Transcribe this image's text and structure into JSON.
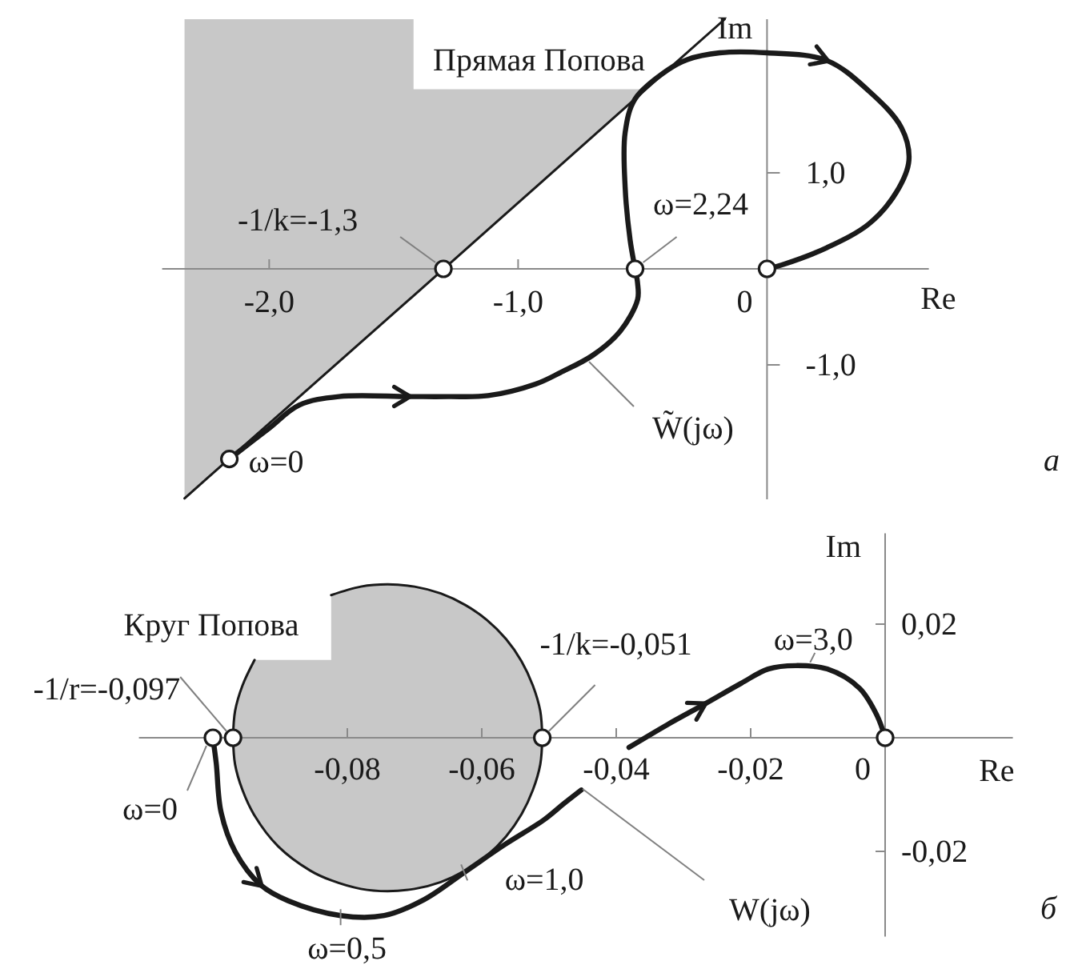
{
  "chart_data": [
    {
      "type": "line",
      "xlabel": "Re",
      "ylabel": "Im",
      "xlim": [
        -2.43,
        0.65
      ],
      "ylim": [
        -2.4,
        2.6
      ],
      "xticks": [
        {
          "value": -2,
          "label": "-2,0"
        },
        {
          "value": -1,
          "label": "-1,0"
        },
        0
      ],
      "yticks": [
        {
          "value": -1,
          "label": "-1,0"
        },
        {
          "value": 1,
          "label": "1,0"
        }
      ],
      "series": [
        {
          "name": "W̃(jω)",
          "color": "#1a1a1a",
          "x": [
            -2.16,
            -2.0,
            -1.88,
            -1.72,
            -1.44,
            -1.28,
            -1.12,
            -0.93,
            -0.83,
            -0.7,
            -0.59,
            -0.52,
            -0.52,
            -0.53,
            -0.55,
            -0.57,
            -0.57,
            -0.53,
            -0.4,
            -0.32,
            -0.19,
            0,
            0.24,
            0.41,
            0.54,
            0.57,
            0.52,
            0.41,
            0.24,
            0.07,
            0
          ],
          "values": [
            -1.98,
            -1.66,
            -1.42,
            -1.33,
            -1.33,
            -1.33,
            -1.32,
            -1.2,
            -1.08,
            -0.9,
            -0.65,
            -0.32,
            -0.15,
            0,
            0.3,
            0.85,
            1.42,
            1.77,
            2.07,
            2.18,
            2.25,
            2.25,
            2.17,
            1.85,
            1.47,
            1.13,
            0.8,
            0.47,
            0.22,
            0.05,
            0
          ]
        },
        {
          "name": "Прямая Попова",
          "color": "#1a1a1a",
          "x": [
            -2.34,
            -1.42,
            -1.42,
            -0.487,
            -0.17
          ],
          "values": [
            -2.39,
            -0.28,
            -0.28,
            1.87,
            2.6
          ],
          "lower": [
            -2.39,
            -0.28,
            -0.28,
            1.87,
            null
          ],
          "upper": [
            2.6,
            2.6,
            1.87,
            1.87,
            null
          ]
        },
        {
          "type": "scatter",
          "color": "#1a1a1a",
          "marker": "circle",
          "x": [
            -2.16,
            -1.3,
            -0.53,
            0
          ],
          "values": [
            -1.98,
            0,
            0,
            0
          ]
        }
      ],
      "annotations": [
        {
          "text": "ω=0",
          "x": -2.16,
          "y": -1.98
        },
        {
          "text": "-1/k=-1,3",
          "x": -1.3,
          "y": 0
        },
        {
          "text": "ω=2,24",
          "x": -0.53,
          "y": 0
        },
        "а"
      ]
    },
    {
      "type": "line",
      "xlabel": "Re",
      "ylabel": "Im",
      "xlim": [
        -0.111,
        0.019
      ],
      "ylim": [
        -0.035,
        0.036
      ],
      "xticks": [
        {
          "value": -0.08,
          "label": "-0,08"
        },
        {
          "value": -0.06,
          "label": "-0,06"
        },
        {
          "value": -0.04,
          "label": "-0,04"
        },
        {
          "value": -0.02,
          "label": "-0,02"
        },
        0
      ],
      "yticks": [
        {
          "value": -0.02,
          "label": "-0,02"
        },
        {
          "value": 0.02,
          "label": "0,02"
        }
      ],
      "series": [
        {
          "name": "W(jω)",
          "color": "#1a1a1a",
          "x": [
            -0.1,
            -0.0995,
            -0.0988,
            -0.0967,
            -0.0929,
            -0.0888,
            -0.081,
            -0.0745,
            -0.0686,
            -0.0626,
            -0.0567,
            -0.0507,
            -0.0479,
            -0.0452,
            -0.0417,
            -0.0381,
            -0.0324,
            -0.0269,
            -0.0214,
            -0.0174,
            -0.0133,
            -0.0086,
            -0.0038,
            -0.0012,
            0
          ],
          "values": [
            0,
            -0.0045,
            -0.013,
            -0.02,
            -0.0259,
            -0.0287,
            -0.0313,
            -0.0313,
            -0.0285,
            -0.0237,
            -0.0189,
            -0.0144,
            -0.0117,
            -0.0092,
            null,
            -0.0017,
            0.0023,
            0.0059,
            0.0096,
            0.0121,
            0.0127,
            0.0121,
            0.0087,
            0.0039,
            0
          ]
        },
        {
          "name": "Круг Попова",
          "color": "#1a1a1a",
          "x": [
            -0.097,
            -0.0967,
            -0.0956,
            -0.0938,
            -0.0903,
            -0.0855,
            -0.0824,
            -0.0824,
            -0.078,
            -0.074,
            -0.07,
            -0.0661,
            -0.0625,
            -0.0592,
            -0.0564,
            -0.0541,
            -0.0524,
            -0.0513,
            -0.051
          ],
          "values": [
            0,
            0.0047,
            0.0092,
            0.0137,
            null,
            null,
            null,
            0.0251,
            0.0266,
            0.027,
            0.0266,
            0.0254,
            0.0234,
            0.0207,
            0.0174,
            0.0135,
            0.0092,
            0.0047,
            0
          ],
          "lower": [
            0,
            -0.0047,
            -0.0092,
            -0.0137,
            -0.0191,
            -0.0234,
            -0.0251,
            -0.0251,
            -0.0266,
            -0.027,
            -0.0266,
            -0.0254,
            -0.0234,
            -0.0207,
            -0.0174,
            -0.0135,
            -0.0092,
            -0.0047,
            0
          ],
          "upper": [
            0,
            0.0047,
            0.0092,
            0.0137,
            0.0137,
            0.0137,
            0.0137,
            0.0251,
            0.0266,
            0.027,
            0.0266,
            0.0254,
            0.0234,
            0.0207,
            0.0174,
            0.0135,
            0.0092,
            0.0047,
            0
          ]
        },
        {
          "color": "#1a1a1a",
          "x": [
            -0.097,
            -0.0967,
            -0.0956,
            -0.0938,
            -0.0903,
            -0.0855,
            -0.0824,
            -0.078,
            -0.074,
            -0.07,
            -0.0661,
            -0.0625,
            -0.0592,
            -0.0564,
            -0.0541,
            -0.0524,
            -0.0513,
            -0.051
          ],
          "values": [
            0,
            -0.0047,
            -0.0092,
            -0.0137,
            -0.0191,
            -0.0234,
            -0.0251,
            -0.0266,
            -0.027,
            -0.0266,
            -0.0254,
            -0.0234,
            -0.0207,
            -0.0174,
            -0.0135,
            -0.0092,
            -0.0047,
            0
          ]
        },
        {
          "type": "scatter",
          "color": "#1a1a1a",
          "marker": "circle",
          "x": [
            -0.1,
            -0.097,
            -0.051,
            0
          ],
          "values": [
            0,
            0,
            0,
            0
          ]
        }
      ],
      "annotations": [
        {
          "text": "-1/r=-0,097",
          "x": -0.097,
          "y": 0
        },
        {
          "text": "ω=0",
          "x": -0.1,
          "y": 0
        },
        {
          "text": "-1/k=-0,051",
          "x": -0.051,
          "y": 0
        },
        {
          "text": "ω=0,5",
          "x": -0.081,
          "y": -0.0313
        },
        {
          "text": "ω=1,0",
          "x": -0.0626,
          "y": -0.0237
        },
        {
          "text": "ω=3,0",
          "x": -0.0133,
          "y": 0.0127
        },
        "б"
      ]
    }
  ]
}
